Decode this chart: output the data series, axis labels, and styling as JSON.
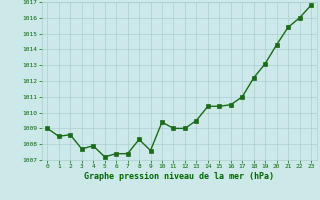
{
  "x": [
    0,
    1,
    2,
    3,
    4,
    5,
    6,
    7,
    8,
    9,
    10,
    11,
    12,
    13,
    14,
    15,
    16,
    17,
    18,
    19,
    20,
    21,
    22,
    23
  ],
  "y": [
    1009.0,
    1008.5,
    1008.6,
    1007.7,
    1007.9,
    1007.2,
    1007.4,
    1007.4,
    1008.3,
    1007.6,
    1009.4,
    1009.0,
    1009.0,
    1009.5,
    1010.4,
    1010.4,
    1010.5,
    1011.0,
    1012.2,
    1013.1,
    1014.3,
    1015.4,
    1016.0,
    1016.8
  ],
  "line_color": "#1a6b1a",
  "marker_color": "#1a6b1a",
  "bg_color": "#cce8e8",
  "grid_color": "#aacfcf",
  "xlabel": "Graphe pression niveau de la mer (hPa)",
  "xlabel_color": "#006600",
  "tick_color": "#006600",
  "ylim": [
    1007,
    1017
  ],
  "xlim_min": -0.5,
  "xlim_max": 23.5,
  "yticks": [
    1007,
    1008,
    1009,
    1010,
    1011,
    1012,
    1013,
    1014,
    1015,
    1016,
    1017
  ],
  "xticks": [
    0,
    1,
    2,
    3,
    4,
    5,
    6,
    7,
    8,
    9,
    10,
    11,
    12,
    13,
    14,
    15,
    16,
    17,
    18,
    19,
    20,
    21,
    22,
    23
  ],
  "marker_size": 3,
  "line_width": 1.0
}
